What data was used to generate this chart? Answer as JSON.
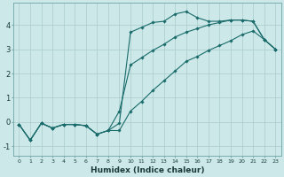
{
  "xlabel": "Humidex (Indice chaleur)",
  "background_color": "#cce8e8",
  "grid_color": "#aacccc",
  "line_color": "#1a6b6b",
  "xlim": [
    -0.5,
    23.5
  ],
  "ylim": [
    -1.4,
    4.9
  ],
  "line1_x": [
    0,
    1,
    2,
    3,
    4,
    5,
    6,
    7,
    8,
    9,
    10,
    11,
    12,
    13,
    14,
    15,
    16,
    17,
    18,
    19,
    20,
    21,
    22,
    23
  ],
  "line1_y": [
    -0.1,
    -0.75,
    -0.05,
    -0.25,
    -0.1,
    -0.1,
    -0.15,
    -0.5,
    -0.35,
    -0.05,
    3.7,
    3.9,
    4.1,
    4.15,
    4.45,
    4.55,
    4.3,
    4.15,
    4.15,
    4.2,
    4.2,
    4.15,
    3.4,
    3.0
  ],
  "line2_x": [
    0,
    1,
    2,
    3,
    4,
    5,
    6,
    7,
    8,
    9,
    10,
    11,
    12,
    13,
    14,
    15,
    16,
    17,
    18,
    19,
    20,
    21,
    22,
    23
  ],
  "line2_y": [
    -0.1,
    -0.75,
    -0.05,
    -0.25,
    -0.1,
    -0.1,
    -0.15,
    -0.5,
    -0.35,
    0.45,
    2.35,
    2.65,
    2.95,
    3.2,
    3.5,
    3.7,
    3.85,
    4.0,
    4.1,
    4.2,
    4.2,
    4.15,
    3.4,
    3.0
  ],
  "line3_x": [
    0,
    1,
    2,
    3,
    4,
    5,
    6,
    7,
    8,
    9,
    10,
    11,
    12,
    13,
    14,
    15,
    16,
    17,
    18,
    19,
    20,
    21,
    22,
    23
  ],
  "line3_y": [
    -0.1,
    -0.75,
    -0.05,
    -0.25,
    -0.1,
    -0.1,
    -0.15,
    -0.5,
    -0.35,
    -0.35,
    0.45,
    0.85,
    1.3,
    1.7,
    2.1,
    2.5,
    2.7,
    2.95,
    3.15,
    3.35,
    3.6,
    3.75,
    3.4,
    3.0
  ],
  "xticks": [
    0,
    1,
    2,
    3,
    4,
    5,
    6,
    7,
    8,
    9,
    10,
    11,
    12,
    13,
    14,
    15,
    16,
    17,
    18,
    19,
    20,
    21,
    22,
    23
  ],
  "yticks": [
    -1,
    0,
    1,
    2,
    3,
    4
  ]
}
